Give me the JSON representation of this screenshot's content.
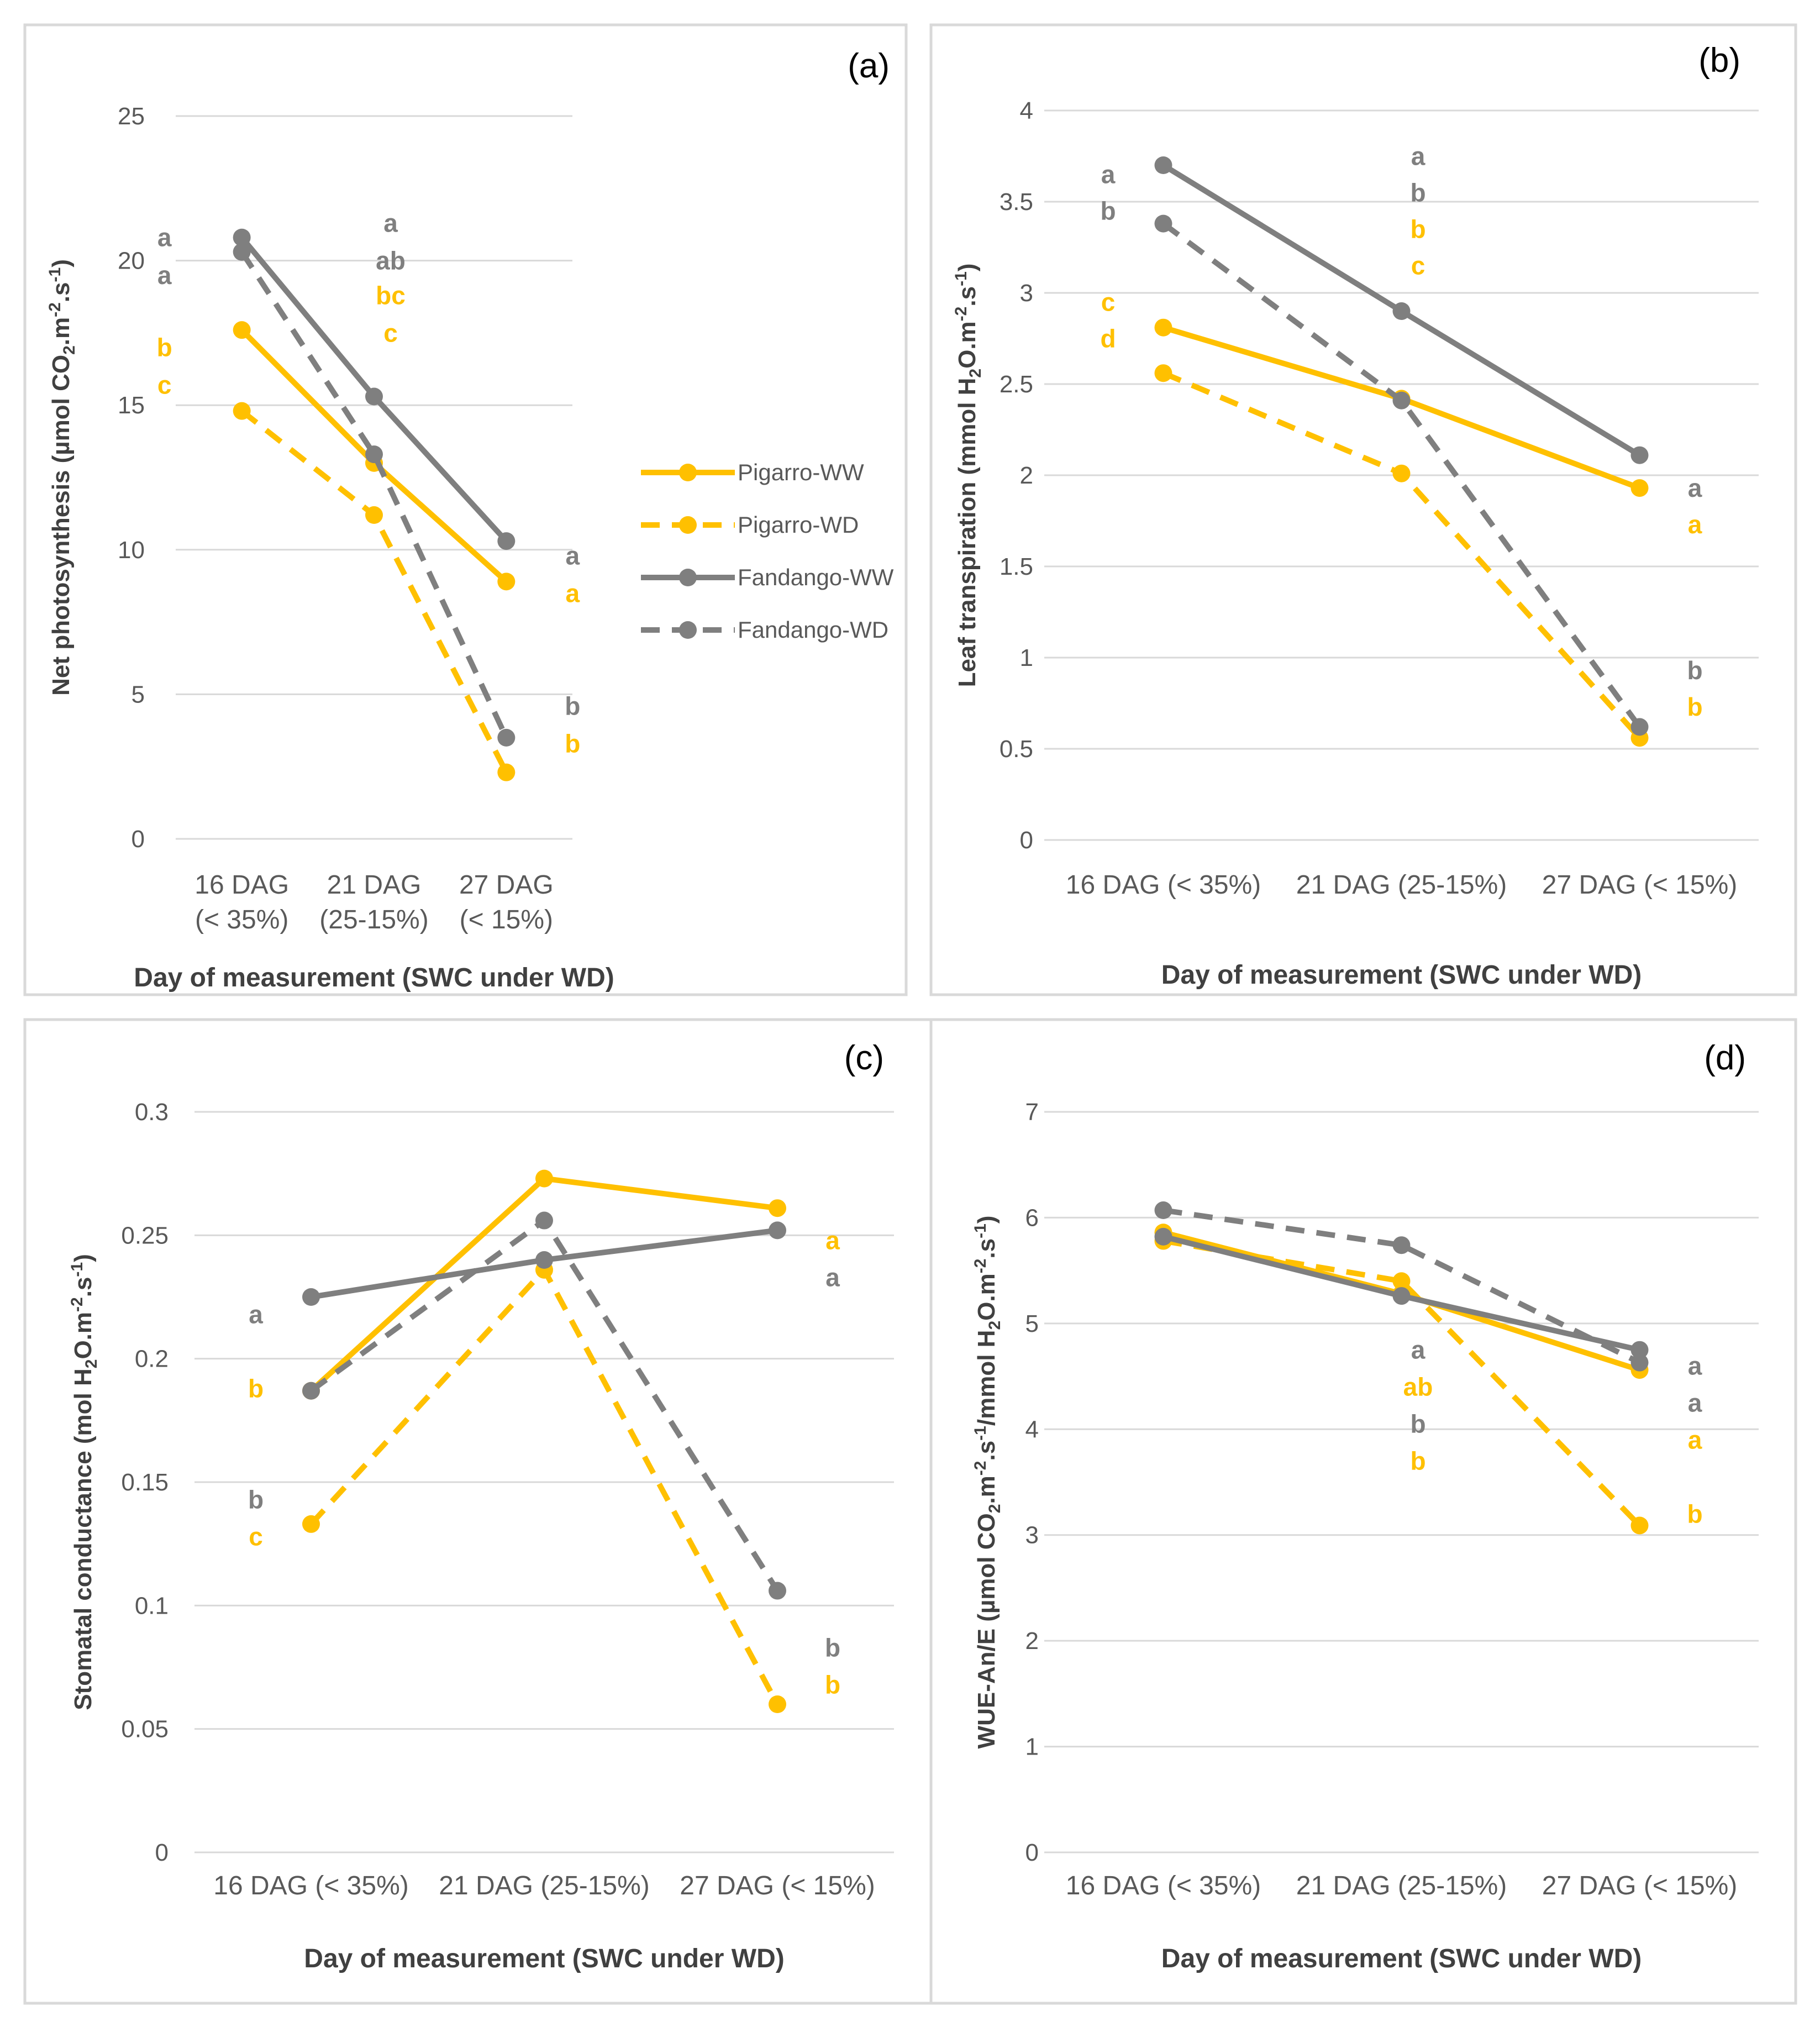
{
  "colors": {
    "pigarro": "#FFC000",
    "fandango": "#7F7F7F"
  },
  "legend": [
    {
      "label": "Pigarro-WW",
      "color": "#FFC000",
      "dashed": false
    },
    {
      "label": "Pigarro-WD",
      "color": "#FFC000",
      "dashed": true
    },
    {
      "label": "Fandango-WW",
      "color": "#7F7F7F",
      "dashed": false
    },
    {
      "label": "Fandango-WD",
      "color": "#7F7F7F",
      "dashed": true
    }
  ],
  "chart_data": [
    {
      "id": "a",
      "type": "line",
      "panel_label": "(a)",
      "xlabel": "Day of measurement (SWC under WD)",
      "ylabel_parts": [
        "Net photosynthesis (µmol CO",
        "2",
        ".m",
        "-2",
        ".s",
        "-1",
        ")"
      ],
      "categories": [
        [
          "16 DAG",
          "(< 35%)"
        ],
        [
          "21 DAG",
          "(25-15%)"
        ],
        [
          "27 DAG",
          "(< 15%)"
        ]
      ],
      "ylim": [
        0,
        25
      ],
      "yticks": [
        "0",
        "5",
        "10",
        "15",
        "20",
        "25"
      ],
      "series": [
        {
          "name": "Pigarro-WW",
          "values": [
            17.6,
            13.0,
            8.9
          ]
        },
        {
          "name": "Pigarro-WD",
          "values": [
            14.8,
            11.2,
            2.3
          ]
        },
        {
          "name": "Fandango-WW",
          "values": [
            20.8,
            15.3,
            10.3
          ]
        },
        {
          "name": "Fandango-WD",
          "values": [
            20.3,
            13.3,
            3.5
          ]
        }
      ],
      "letters": [
        {
          "text": "a",
          "x": 0,
          "y": 20.8,
          "variety": "fandango"
        },
        {
          "text": "a",
          "x": 0,
          "y": 19.5,
          "variety": "fandango"
        },
        {
          "text": "b",
          "x": 0,
          "y": 17.0,
          "variety": "pigarro"
        },
        {
          "text": "c",
          "x": 0,
          "y": 15.7,
          "variety": "pigarro"
        },
        {
          "text": "a",
          "x": 1,
          "y": 21.3,
          "variety": "fandango"
        },
        {
          "text": "ab",
          "x": 1,
          "y": 20.0,
          "variety": "fandango"
        },
        {
          "text": "bc",
          "x": 1,
          "y": 18.8,
          "variety": "pigarro"
        },
        {
          "text": "c",
          "x": 1,
          "y": 17.5,
          "variety": "pigarro"
        },
        {
          "text": "a",
          "x": 2,
          "y": 9.8,
          "variety": "fandango"
        },
        {
          "text": "a",
          "x": 2,
          "y": 8.5,
          "variety": "pigarro"
        },
        {
          "text": "b",
          "x": 2,
          "y": 4.6,
          "variety": "fandango"
        },
        {
          "text": "b",
          "x": 2,
          "y": 3.3,
          "variety": "pigarro"
        }
      ]
    },
    {
      "id": "b",
      "type": "line",
      "panel_label": "(b)",
      "xlabel": "Day of measurement (SWC under WD)",
      "ylabel_parts": [
        "Leaf transpiration  (mmol H",
        "2",
        "O.m",
        "-2",
        ".s",
        "-1",
        ")"
      ],
      "categories": [
        [
          "16 DAG (< 35%)"
        ],
        [
          "21 DAG (25-15%)"
        ],
        [
          "27 DAG (< 15%)"
        ]
      ],
      "ylim": [
        0,
        4
      ],
      "yticks": [
        "0",
        "0.5",
        "1",
        "1.5",
        "2",
        "2.5",
        "3",
        "3.5",
        "4"
      ],
      "series": [
        {
          "name": "Pigarro-WW",
          "values": [
            2.81,
            2.42,
            1.93
          ]
        },
        {
          "name": "Pigarro-WD",
          "values": [
            2.56,
            2.01,
            0.56
          ]
        },
        {
          "name": "Fandango-WW",
          "values": [
            3.7,
            2.9,
            2.11
          ]
        },
        {
          "name": "Fandango-WD",
          "values": [
            3.38,
            2.41,
            0.62
          ]
        }
      ],
      "letters": [
        {
          "text": "a",
          "x": 0,
          "y": 3.65,
          "variety": "fandango"
        },
        {
          "text": "b",
          "x": 0,
          "y": 3.45,
          "variety": "fandango"
        },
        {
          "text": "c",
          "x": 0,
          "y": 2.95,
          "variety": "pigarro"
        },
        {
          "text": "d",
          "x": 0,
          "y": 2.75,
          "variety": "pigarro"
        },
        {
          "text": "a",
          "x": 1,
          "y": 3.75,
          "variety": "fandango"
        },
        {
          "text": "b",
          "x": 1,
          "y": 3.55,
          "variety": "fandango"
        },
        {
          "text": "b",
          "x": 1,
          "y": 3.35,
          "variety": "pigarro"
        },
        {
          "text": "c",
          "x": 1,
          "y": 3.15,
          "variety": "pigarro"
        },
        {
          "text": "a",
          "x": 2,
          "y": 1.93,
          "variety": "fandango"
        },
        {
          "text": "a",
          "x": 2,
          "y": 1.73,
          "variety": "pigarro"
        },
        {
          "text": "b",
          "x": 2,
          "y": 0.93,
          "variety": "fandango"
        },
        {
          "text": "b",
          "x": 2,
          "y": 0.73,
          "variety": "pigarro"
        }
      ]
    },
    {
      "id": "c",
      "type": "line",
      "panel_label": "(c)",
      "xlabel": "Day of measurement (SWC under WD)",
      "ylabel_parts": [
        "Stomatal conductance (mol H",
        "2",
        "O.m",
        "-2",
        ".s",
        "-1",
        ")"
      ],
      "categories": [
        [
          "16 DAG (< 35%)"
        ],
        [
          "21 DAG (25-15%)"
        ],
        [
          "27 DAG (< 15%)"
        ]
      ],
      "ylim": [
        0,
        0.3
      ],
      "yticks": [
        "0",
        "0.05",
        "0.1",
        "0.15",
        "0.2",
        "0.25",
        "0.3"
      ],
      "series": [
        {
          "name": "Pigarro-WW",
          "values": [
            0.187,
            0.273,
            0.261
          ]
        },
        {
          "name": "Pigarro-WD",
          "values": [
            0.133,
            0.236,
            0.06
          ]
        },
        {
          "name": "Fandango-WW",
          "values": [
            0.225,
            0.24,
            0.252
          ]
        },
        {
          "name": "Fandango-WD",
          "values": [
            0.187,
            0.256,
            0.106
          ]
        }
      ],
      "letters": [
        {
          "text": "a",
          "x": 0,
          "y": 0.218,
          "variety": "fandango"
        },
        {
          "text": "b",
          "x": 0,
          "y": 0.188,
          "variety": "pigarro"
        },
        {
          "text": "b",
          "x": 0,
          "y": 0.143,
          "variety": "fandango"
        },
        {
          "text": "c",
          "x": 0,
          "y": 0.128,
          "variety": "pigarro"
        },
        {
          "text": "a",
          "x": 2,
          "y": 0.248,
          "variety": "pigarro"
        },
        {
          "text": "a",
          "x": 2,
          "y": 0.233,
          "variety": "fandango"
        },
        {
          "text": "b",
          "x": 2,
          "y": 0.083,
          "variety": "fandango"
        },
        {
          "text": "b",
          "x": 2,
          "y": 0.068,
          "variety": "pigarro"
        }
      ]
    },
    {
      "id": "d",
      "type": "line",
      "panel_label": "(d)",
      "xlabel": "Day of measurement (SWC under WD)",
      "ylabel_parts": [
        "WUE-An/E (µmol CO",
        "2",
        ".m",
        "-2",
        ".s",
        "-1",
        "/mmol H",
        "2",
        "O.m",
        "-2",
        ".s",
        "-1",
        ")"
      ],
      "categories": [
        [
          "16 DAG (< 35%)"
        ],
        [
          "21 DAG (25-15%)"
        ],
        [
          "27 DAG (< 15%)"
        ]
      ],
      "ylim": [
        0,
        7
      ],
      "yticks": [
        "0",
        "1",
        "2",
        "3",
        "4",
        "5",
        "6",
        "7"
      ],
      "series": [
        {
          "name": "Pigarro-WW",
          "values": [
            5.86,
            5.28,
            4.56
          ]
        },
        {
          "name": "Pigarro-WD",
          "values": [
            5.78,
            5.4,
            3.09
          ]
        },
        {
          "name": "Fandango-WW",
          "values": [
            5.82,
            5.26,
            4.75
          ]
        },
        {
          "name": "Fandango-WD",
          "values": [
            6.07,
            5.74,
            4.63
          ]
        }
      ],
      "letters": [
        {
          "text": "a",
          "x": 1,
          "y": 4.75,
          "variety": "fandango"
        },
        {
          "text": "ab",
          "x": 1,
          "y": 4.4,
          "variety": "pigarro"
        },
        {
          "text": "b",
          "x": 1,
          "y": 4.05,
          "variety": "fandango"
        },
        {
          "text": "b",
          "x": 1,
          "y": 3.7,
          "variety": "pigarro"
        },
        {
          "text": "a",
          "x": 2,
          "y": 4.6,
          "variety": "fandango"
        },
        {
          "text": "a",
          "x": 2,
          "y": 4.25,
          "variety": "fandango"
        },
        {
          "text": "a",
          "x": 2,
          "y": 3.9,
          "variety": "pigarro"
        },
        {
          "text": "b",
          "x": 2,
          "y": 3.2,
          "variety": "pigarro"
        }
      ]
    }
  ]
}
